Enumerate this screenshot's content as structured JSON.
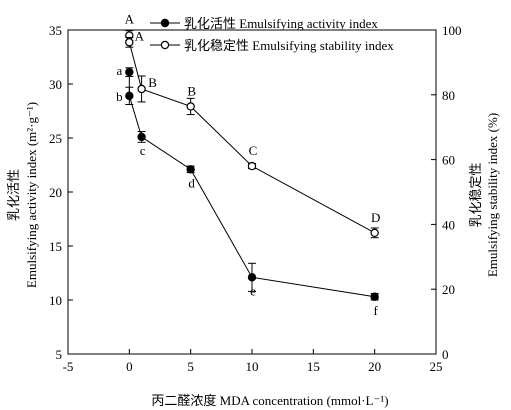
{
  "chart_data": {
    "type": "line",
    "xlabel": "丙二醛浓度 MDA concentration (mmol·L⁻¹)",
    "ylabel_left_cn": "乳化活性",
    "ylabel_left_en": "Emulsifying activity index (m²·g⁻¹)",
    "ylabel_right_cn": "乳化稳定性",
    "ylabel_right_en": "Emulsifying stability index (%)",
    "xlim": [
      -5,
      25
    ],
    "xticks": [
      -5,
      0,
      5,
      10,
      15,
      20,
      25
    ],
    "ylim_left": [
      5,
      35
    ],
    "yticks_left": [
      5,
      10,
      15,
      20,
      25,
      30,
      35
    ],
    "ylim_right": [
      0,
      100
    ],
    "yticks_right": [
      0,
      20,
      40,
      60,
      80,
      100
    ],
    "legend_position": "top-right",
    "series": [
      {
        "name": "乳化活性 Emulsifying activity index",
        "axis": "left",
        "marker": "filled",
        "x": [
          0,
          0,
          1,
          5,
          10,
          20
        ],
        "values": [
          31.1,
          28.9,
          25.1,
          22.1,
          12.1,
          10.3
        ],
        "errors": [
          0.4,
          0.8,
          0.5,
          0.3,
          1.3,
          0.3
        ],
        "labels": [
          "a",
          "b",
          "c",
          "d",
          "e",
          "f"
        ]
      },
      {
        "name": "乳化稳定性 Emulsifying stability index",
        "axis": "right",
        "marker": "open",
        "x": [
          0,
          0,
          1,
          5,
          10,
          20
        ],
        "values": [
          98.3,
          96.2,
          81.8,
          76.4,
          58.0,
          37.4
        ],
        "errors": [
          1.5,
          1.5,
          4.0,
          2.5,
          0.8,
          1.5
        ],
        "labels": [
          "A",
          "A",
          "B",
          "B",
          "C",
          "D"
        ]
      }
    ]
  }
}
